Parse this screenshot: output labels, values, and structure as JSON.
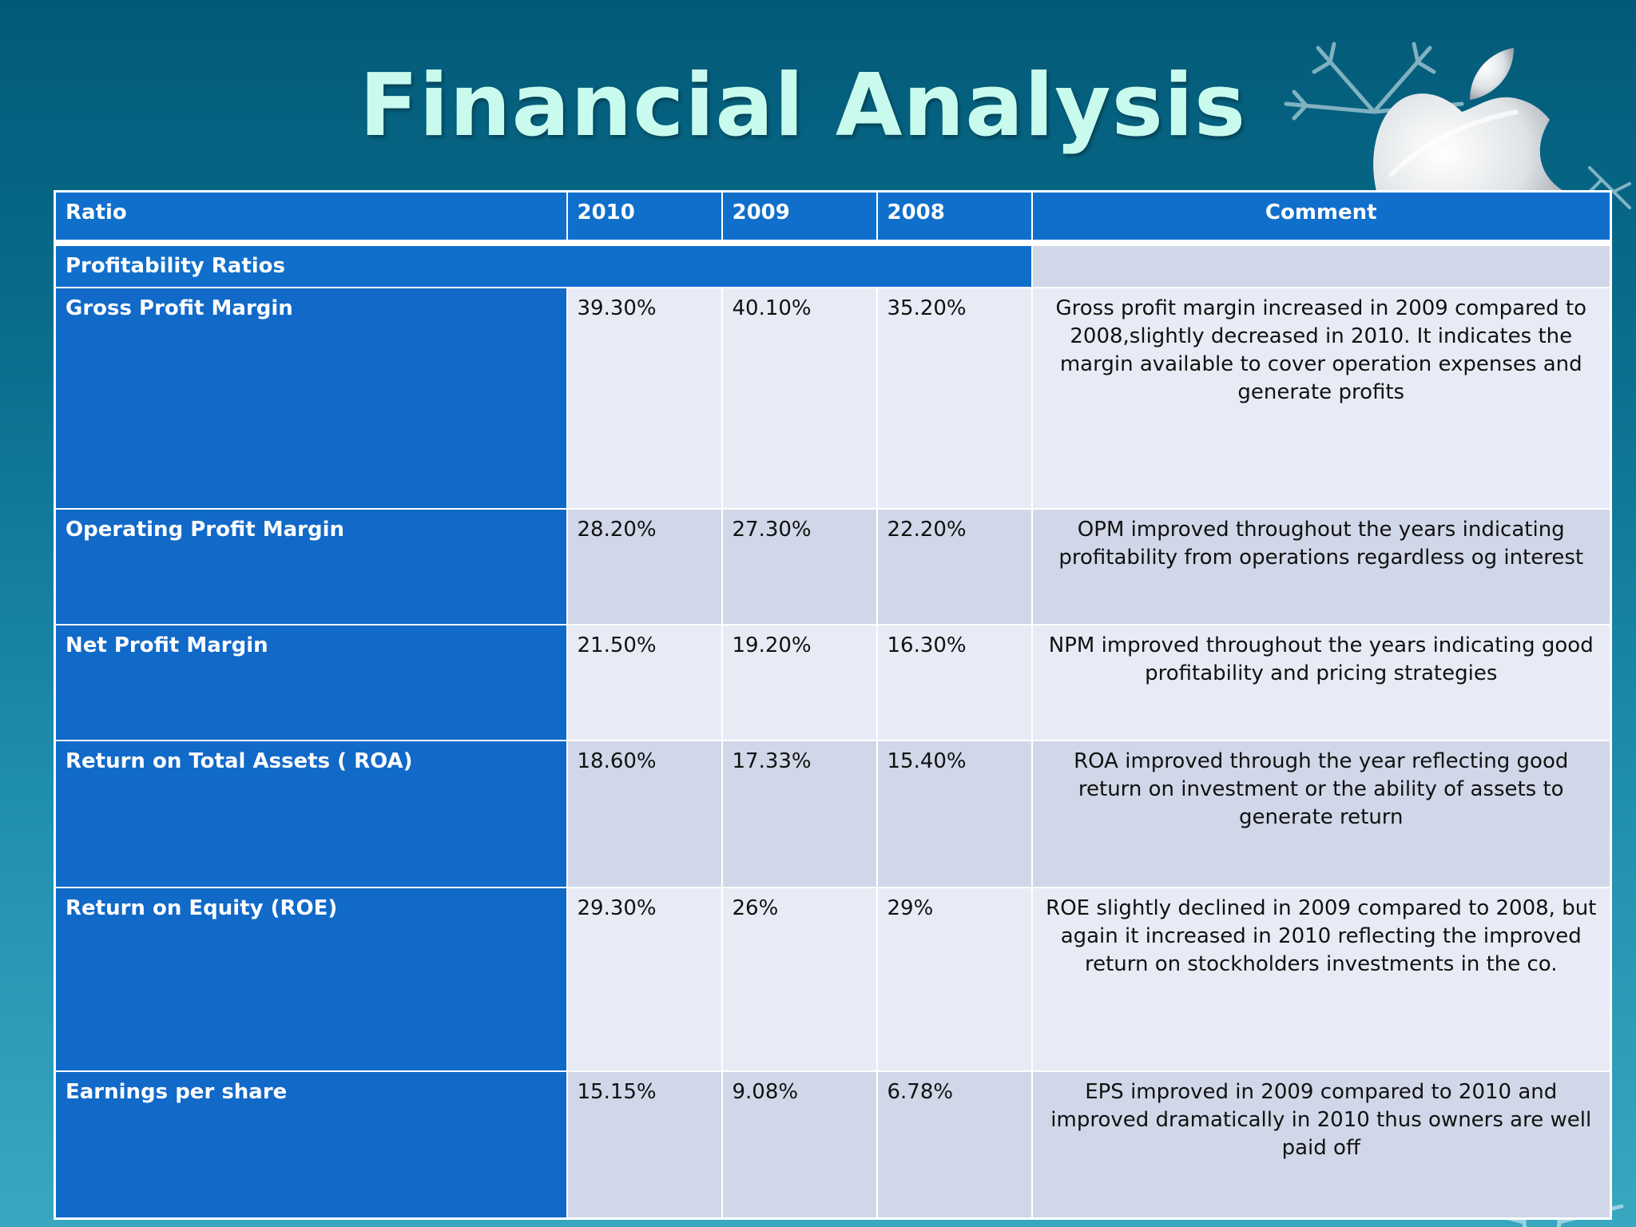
{
  "title": "Financial Analysis",
  "colors": {
    "title": "#c8fbee",
    "header_bg": "#0f6fcb",
    "label_bg": "#1169c8",
    "row_light": "#e8ebf5",
    "row_dark": "#d0d7e8"
  },
  "decor": {
    "logo": "apple-logo-icon",
    "ornaments": "snowflake-icon"
  },
  "table": {
    "headers": [
      "Ratio",
      "2010",
      "2009",
      "2008",
      "Comment"
    ],
    "section": "Profitability Ratios",
    "rows": [
      {
        "ratio": "Gross Profit Margin",
        "y2010": "39.30%",
        "y2009": "40.10%",
        "y2008": "35.20%",
        "comment": "Gross profit margin increased in 2009 compared to 2008,slightly decreased in 2010. It indicates the margin available to cover operation expenses  and generate profits"
      },
      {
        "ratio": "Operating Profit Margin",
        "y2010": "28.20%",
        "y2009": "27.30%",
        "y2008": "22.20%",
        "comment": "OPM improved throughout the years indicating profitability from operations regardless og interest"
      },
      {
        "ratio": "Net Profit Margin",
        "y2010": "21.50%",
        "y2009": "19.20%",
        "y2008": "16.30%",
        "comment": "NPM improved throughout the years indicating  good profitability and pricing strategies"
      },
      {
        "ratio": "Return on Total Assets ( ROA)",
        "y2010": "18.60%",
        "y2009": "17.33%",
        "y2008": "15.40%",
        "comment": "ROA improved through the year reflecting good return on investment or the ability of assets to generate return"
      },
      {
        "ratio": "Return on Equity (ROE)",
        "y2010": "29.30%",
        "y2009": "26%",
        "y2008": "29%",
        "comment": "ROE slightly declined in 2009 compared to 2008, but again it increased in 2010 reflecting the improved return on stockholders investments in the co."
      },
      {
        "ratio": "Earnings per share",
        "y2010": "15.15%",
        "y2009": "9.08%",
        "y2008": "6.78%",
        "comment": "EPS improved in 2009 compared to 2010 and improved dramatically in 2010 thus owners are well paid off"
      }
    ]
  }
}
